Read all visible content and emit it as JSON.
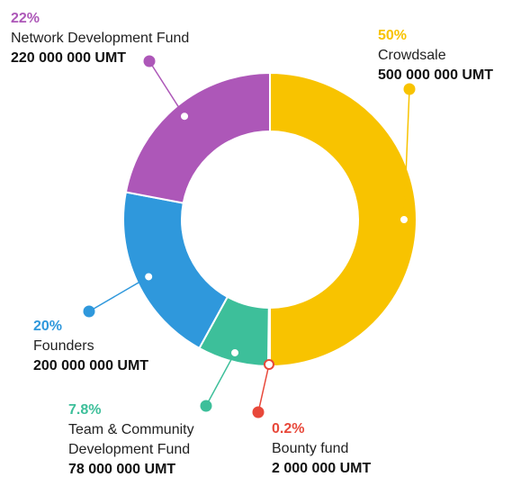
{
  "chart_data": {
    "type": "pie",
    "variant": "donut",
    "unit": "UMT",
    "slices": [
      {
        "name": "Crowdsale",
        "percent_label": "50%",
        "amount_label": "500 000 000 UMT",
        "value": 500000000,
        "color": "#f8c300"
      },
      {
        "name": "Bounty fund",
        "percent_label": "0.2%",
        "amount_label": "2 000 000 UMT",
        "value": 2000000,
        "color": "#e8483a"
      },
      {
        "name": "Team & Community Development Fund",
        "name_lines": [
          "Team & Community",
          "Development Fund"
        ],
        "percent_label": "7.8%",
        "amount_label": "78 000 000 UMT",
        "value": 78000000,
        "color": "#3dbf9a"
      },
      {
        "name": "Founders",
        "percent_label": "20%",
        "amount_label": "200 000 000 UMT",
        "value": 200000000,
        "color": "#2f98dc"
      },
      {
        "name": "Network Development Fund",
        "percent_label": "22%",
        "amount_label": "220 000 000 UMT",
        "value": 220000000,
        "color": "#ad57b8"
      }
    ]
  }
}
